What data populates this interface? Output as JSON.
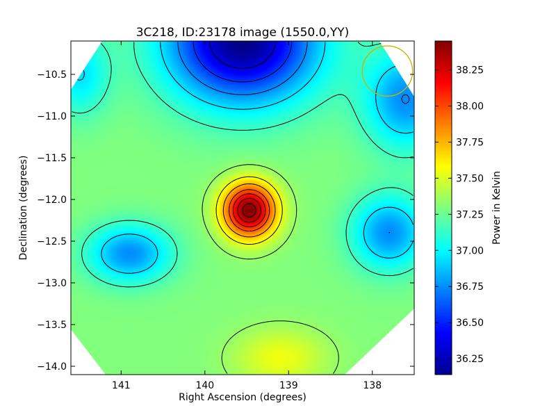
{
  "chart_data": {
    "type": "heatmap",
    "title": "3C218, ID:23178 image (1550.0,YY)",
    "xlabel": "Right Ascension (degrees)",
    "ylabel": "Declination (degrees)",
    "colorbar_label": "Power in Kelvin",
    "x_ticks": [
      {
        "value": 141,
        "label": "141"
      },
      {
        "value": 140,
        "label": "140"
      },
      {
        "value": 139,
        "label": "139"
      },
      {
        "value": 138,
        "label": "138"
      }
    ],
    "y_ticks": [
      {
        "value": -10.5,
        "label": "−10.5"
      },
      {
        "value": -11.0,
        "label": "−11.0"
      },
      {
        "value": -11.5,
        "label": "−11.5"
      },
      {
        "value": -12.0,
        "label": "−12.0"
      },
      {
        "value": -12.5,
        "label": "−12.5"
      },
      {
        "value": -13.0,
        "label": "−13.0"
      },
      {
        "value": -13.5,
        "label": "−13.5"
      },
      {
        "value": -14.0,
        "label": "−14.0"
      }
    ],
    "colorbar_ticks": [
      {
        "value": 36.25,
        "label": "36.25"
      },
      {
        "value": 36.5,
        "label": "36.50"
      },
      {
        "value": 36.75,
        "label": "36.75"
      },
      {
        "value": 37.0,
        "label": "37.00"
      },
      {
        "value": 37.25,
        "label": "37.25"
      },
      {
        "value": 37.5,
        "label": "37.50"
      },
      {
        "value": 37.75,
        "label": "37.75"
      },
      {
        "value": 38.0,
        "label": "38.00"
      },
      {
        "value": 38.25,
        "label": "38.25"
      }
    ],
    "xlim": [
      141.6,
      137.5
    ],
    "ylim": [
      -14.1,
      -10.1
    ],
    "value_range": [
      36.14,
      38.45
    ],
    "colormap": "jet",
    "x_axis_inverted": true,
    "sources": [
      {
        "ra": 139.47,
        "dec": -12.13,
        "peak": 38.4,
        "kind": "peak"
      },
      {
        "ra": 139.55,
        "dec": -10.1,
        "peak": 36.14,
        "kind": "minimum"
      },
      {
        "ra": 140.9,
        "dec": -12.65,
        "peak": 36.85,
        "kind": "minimum"
      },
      {
        "ra": 137.95,
        "dec": -12.45,
        "peak": 36.8,
        "kind": "minimum"
      },
      {
        "ra": 139.1,
        "dec": -13.8,
        "peak": 37.55,
        "kind": "maximum"
      },
      {
        "ra": 139.1,
        "dec": -14.0,
        "peak": 37.6,
        "kind": "maximum"
      }
    ],
    "contour_levels": [
      36.35,
      36.55,
      36.75,
      36.95,
      37.15,
      37.35,
      37.55,
      37.75,
      37.95,
      38.1,
      38.25,
      38.38
    ],
    "beam_circle": {
      "ra": 137.82,
      "dec": -10.46,
      "radius_deg": 0.3,
      "color": "#c8b400"
    },
    "grid": false
  }
}
